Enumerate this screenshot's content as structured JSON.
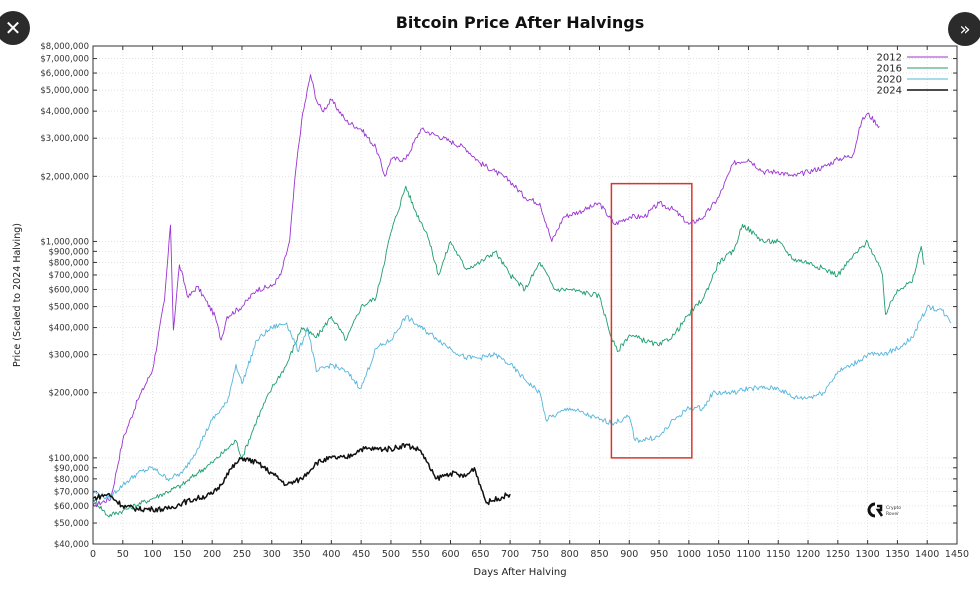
{
  "overlay": {
    "close_icon": "close-icon",
    "next_icon": "double-chevron-right-icon"
  },
  "chart_data": {
    "type": "line",
    "title": "Bitcoin Price After Halvings",
    "xlabel": "Days After Halving",
    "ylabel": "Price (Scaled to 2024 Halving)",
    "xlim": [
      0,
      1450
    ],
    "ylim": [
      40000,
      8000000
    ],
    "yscale": "log",
    "grid": true,
    "legend_placement": "top-right",
    "x_ticks": [
      0,
      50,
      100,
      150,
      200,
      250,
      300,
      350,
      400,
      450,
      500,
      550,
      600,
      650,
      700,
      750,
      800,
      850,
      900,
      950,
      1000,
      1050,
      1100,
      1150,
      1200,
      1250,
      1300,
      1350,
      1400,
      1450
    ],
    "y_ticks": [
      {
        "value": 40000,
        "label": "$40,000"
      },
      {
        "value": 50000,
        "label": "$50,000"
      },
      {
        "value": 60000,
        "label": "$60,000"
      },
      {
        "value": 70000,
        "label": "$70,000"
      },
      {
        "value": 80000,
        "label": "$80,000"
      },
      {
        "value": 90000,
        "label": "$90,000"
      },
      {
        "value": 100000,
        "label": "$100,000"
      },
      {
        "value": 200000,
        "label": "$200,000"
      },
      {
        "value": 300000,
        "label": "$300,000"
      },
      {
        "value": 400000,
        "label": "$400,000"
      },
      {
        "value": 500000,
        "label": "$500,000"
      },
      {
        "value": 600000,
        "label": "$600,000"
      },
      {
        "value": 700000,
        "label": "$700,000"
      },
      {
        "value": 800000,
        "label": "$800,000"
      },
      {
        "value": 900000,
        "label": "$900,000"
      },
      {
        "value": 1000000,
        "label": "$1,000,000"
      },
      {
        "value": 2000000,
        "label": "$2,000,000"
      },
      {
        "value": 3000000,
        "label": "$3,000,000"
      },
      {
        "value": 4000000,
        "label": "$4,000,000"
      },
      {
        "value": 5000000,
        "label": "$5,000,000"
      },
      {
        "value": 6000000,
        "label": "$6,000,000"
      },
      {
        "value": 7000000,
        "label": "$7,000,000"
      },
      {
        "value": 8000000,
        "label": "$8,000,000"
      }
    ],
    "series": [
      {
        "name": "2012",
        "color": "#9b35d2",
        "points": [
          [
            0,
            60000
          ],
          [
            30,
            65000
          ],
          [
            50,
            121000
          ],
          [
            75,
            185000
          ],
          [
            100,
            255000
          ],
          [
            120,
            535000
          ],
          [
            130,
            1190000
          ],
          [
            135,
            390000
          ],
          [
            145,
            780000
          ],
          [
            160,
            550000
          ],
          [
            175,
            620000
          ],
          [
            190,
            530000
          ],
          [
            205,
            450000
          ],
          [
            215,
            350000
          ],
          [
            225,
            450000
          ],
          [
            250,
            500000
          ],
          [
            275,
            600000
          ],
          [
            300,
            620000
          ],
          [
            315,
            700000
          ],
          [
            330,
            1000000
          ],
          [
            340,
            2100000
          ],
          [
            350,
            3600000
          ],
          [
            365,
            5900000
          ],
          [
            375,
            4500000
          ],
          [
            385,
            4000000
          ],
          [
            400,
            4500000
          ],
          [
            425,
            3600000
          ],
          [
            450,
            3300000
          ],
          [
            475,
            2700000
          ],
          [
            490,
            2000000
          ],
          [
            500,
            2400000
          ],
          [
            525,
            2400000
          ],
          [
            550,
            3300000
          ],
          [
            575,
            3100000
          ],
          [
            600,
            2900000
          ],
          [
            625,
            2700000
          ],
          [
            650,
            2300000
          ],
          [
            675,
            2100000
          ],
          [
            700,
            1900000
          ],
          [
            725,
            1600000
          ],
          [
            750,
            1500000
          ],
          [
            770,
            1000000
          ],
          [
            790,
            1300000
          ],
          [
            825,
            1400000
          ],
          [
            850,
            1500000
          ],
          [
            875,
            1200000
          ],
          [
            900,
            1300000
          ],
          [
            925,
            1300000
          ],
          [
            950,
            1500000
          ],
          [
            975,
            1400000
          ],
          [
            1000,
            1200000
          ],
          [
            1025,
            1300000
          ],
          [
            1050,
            1600000
          ],
          [
            1075,
            2300000
          ],
          [
            1100,
            2400000
          ],
          [
            1125,
            2100000
          ],
          [
            1150,
            2100000
          ],
          [
            1175,
            2000000
          ],
          [
            1200,
            2100000
          ],
          [
            1225,
            2200000
          ],
          [
            1250,
            2400000
          ],
          [
            1275,
            2500000
          ],
          [
            1290,
            3600000
          ],
          [
            1300,
            3900000
          ],
          [
            1320,
            3400000
          ]
        ]
      },
      {
        "name": "2016",
        "color": "#1f9e6e",
        "points": [
          [
            0,
            65000
          ],
          [
            25,
            54000
          ],
          [
            50,
            57000
          ],
          [
            100,
            65000
          ],
          [
            150,
            75000
          ],
          [
            175,
            85000
          ],
          [
            200,
            95000
          ],
          [
            225,
            110000
          ],
          [
            240,
            120000
          ],
          [
            250,
            100000
          ],
          [
            275,
            150000
          ],
          [
            300,
            210000
          ],
          [
            325,
            270000
          ],
          [
            350,
            400000
          ],
          [
            375,
            360000
          ],
          [
            400,
            450000
          ],
          [
            425,
            350000
          ],
          [
            450,
            500000
          ],
          [
            475,
            550000
          ],
          [
            500,
            1100000
          ],
          [
            525,
            1800000
          ],
          [
            540,
            1400000
          ],
          [
            560,
            1100000
          ],
          [
            580,
            700000
          ],
          [
            600,
            1000000
          ],
          [
            625,
            750000
          ],
          [
            650,
            800000
          ],
          [
            675,
            900000
          ],
          [
            700,
            700000
          ],
          [
            725,
            600000
          ],
          [
            750,
            800000
          ],
          [
            775,
            600000
          ],
          [
            800,
            600000
          ],
          [
            850,
            560000
          ],
          [
            870,
            360000
          ],
          [
            880,
            310000
          ],
          [
            900,
            370000
          ],
          [
            950,
            330000
          ],
          [
            975,
            370000
          ],
          [
            1000,
            460000
          ],
          [
            1025,
            550000
          ],
          [
            1050,
            800000
          ],
          [
            1075,
            900000
          ],
          [
            1090,
            1200000
          ],
          [
            1125,
            1000000
          ],
          [
            1150,
            1000000
          ],
          [
            1175,
            830000
          ],
          [
            1200,
            800000
          ],
          [
            1225,
            750000
          ],
          [
            1250,
            700000
          ],
          [
            1275,
            850000
          ],
          [
            1300,
            1000000
          ],
          [
            1325,
            700000
          ],
          [
            1330,
            460000
          ],
          [
            1350,
            600000
          ],
          [
            1375,
            650000
          ],
          [
            1390,
            950000
          ],
          [
            1395,
            780000
          ]
        ]
      },
      {
        "name": "2020",
        "color": "#56b6dc",
        "points": [
          [
            0,
            70000
          ],
          [
            25,
            65000
          ],
          [
            50,
            75000
          ],
          [
            75,
            85000
          ],
          [
            100,
            90000
          ],
          [
            125,
            80000
          ],
          [
            150,
            85000
          ],
          [
            175,
            110000
          ],
          [
            200,
            150000
          ],
          [
            225,
            180000
          ],
          [
            240,
            270000
          ],
          [
            250,
            220000
          ],
          [
            275,
            350000
          ],
          [
            300,
            400000
          ],
          [
            325,
            420000
          ],
          [
            345,
            310000
          ],
          [
            360,
            400000
          ],
          [
            375,
            250000
          ],
          [
            400,
            270000
          ],
          [
            425,
            250000
          ],
          [
            450,
            210000
          ],
          [
            475,
            320000
          ],
          [
            500,
            350000
          ],
          [
            525,
            450000
          ],
          [
            550,
            400000
          ],
          [
            575,
            360000
          ],
          [
            600,
            320000
          ],
          [
            625,
            290000
          ],
          [
            650,
            290000
          ],
          [
            675,
            300000
          ],
          [
            700,
            270000
          ],
          [
            725,
            230000
          ],
          [
            750,
            200000
          ],
          [
            760,
            150000
          ],
          [
            800,
            170000
          ],
          [
            850,
            150000
          ],
          [
            875,
            145000
          ],
          [
            900,
            155000
          ],
          [
            910,
            120000
          ],
          [
            950,
            125000
          ],
          [
            975,
            150000
          ],
          [
            1000,
            170000
          ],
          [
            1025,
            170000
          ],
          [
            1040,
            200000
          ],
          [
            1075,
            200000
          ],
          [
            1100,
            210000
          ],
          [
            1150,
            210000
          ],
          [
            1175,
            190000
          ],
          [
            1200,
            190000
          ],
          [
            1225,
            200000
          ],
          [
            1250,
            250000
          ],
          [
            1275,
            270000
          ],
          [
            1300,
            300000
          ],
          [
            1325,
            300000
          ],
          [
            1350,
            320000
          ],
          [
            1375,
            360000
          ],
          [
            1400,
            500000
          ],
          [
            1425,
            480000
          ],
          [
            1440,
            420000
          ]
        ]
      },
      {
        "name": "2024",
        "color": "#111111",
        "points": [
          [
            0,
            65000
          ],
          [
            25,
            68000
          ],
          [
            50,
            60000
          ],
          [
            75,
            58000
          ],
          [
            100,
            58000
          ],
          [
            125,
            58000
          ],
          [
            150,
            62000
          ],
          [
            175,
            65000
          ],
          [
            200,
            68000
          ],
          [
            215,
            75000
          ],
          [
            225,
            85000
          ],
          [
            250,
            100000
          ],
          [
            275,
            95000
          ],
          [
            300,
            85000
          ],
          [
            325,
            75000
          ],
          [
            350,
            80000
          ],
          [
            375,
            95000
          ],
          [
            400,
            100000
          ],
          [
            425,
            100000
          ],
          [
            450,
            110000
          ],
          [
            475,
            110000
          ],
          [
            500,
            110000
          ],
          [
            525,
            115000
          ],
          [
            550,
            108000
          ],
          [
            575,
            80000
          ],
          [
            600,
            85000
          ],
          [
            625,
            82000
          ],
          [
            640,
            90000
          ],
          [
            650,
            75000
          ],
          [
            660,
            62000
          ],
          [
            680,
            65000
          ],
          [
            700,
            68000
          ]
        ]
      }
    ],
    "annotations": [
      {
        "type": "rectangle",
        "color": "#d9362b",
        "x_range": [
          870,
          1005
        ],
        "y_range": [
          100000,
          1850000
        ]
      }
    ],
    "watermark": "Crypto Rover"
  }
}
